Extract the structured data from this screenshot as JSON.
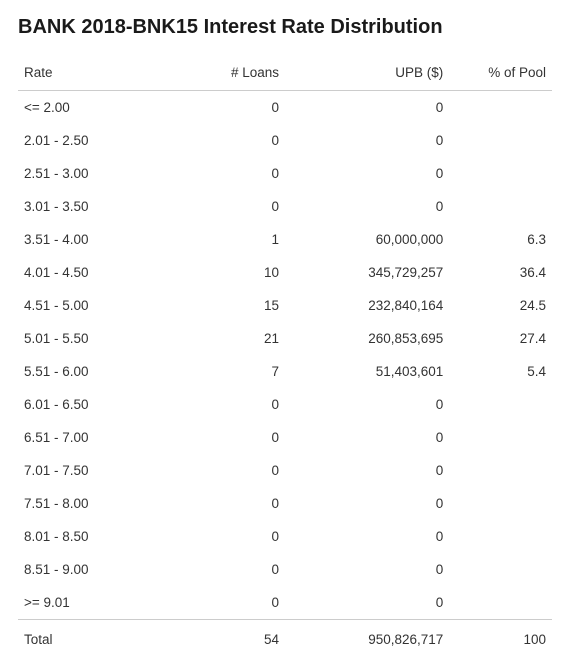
{
  "title": "BANK 2018-BNK15 Interest Rate Distribution",
  "table": {
    "columns": [
      "Rate",
      "# Loans",
      "UPB ($)",
      "% of Pool"
    ],
    "rows": [
      {
        "rate": "<= 2.00",
        "loans": "0",
        "upb": "0",
        "pct": ""
      },
      {
        "rate": "2.01 - 2.50",
        "loans": "0",
        "upb": "0",
        "pct": ""
      },
      {
        "rate": "2.51 - 3.00",
        "loans": "0",
        "upb": "0",
        "pct": ""
      },
      {
        "rate": "3.01 - 3.50",
        "loans": "0",
        "upb": "0",
        "pct": ""
      },
      {
        "rate": "3.51 - 4.00",
        "loans": "1",
        "upb": "60,000,000",
        "pct": "6.3"
      },
      {
        "rate": "4.01 - 4.50",
        "loans": "10",
        "upb": "345,729,257",
        "pct": "36.4"
      },
      {
        "rate": "4.51 - 5.00",
        "loans": "15",
        "upb": "232,840,164",
        "pct": "24.5"
      },
      {
        "rate": "5.01 - 5.50",
        "loans": "21",
        "upb": "260,853,695",
        "pct": "27.4"
      },
      {
        "rate": "5.51 - 6.00",
        "loans": "7",
        "upb": "51,403,601",
        "pct": "5.4"
      },
      {
        "rate": "6.01 - 6.50",
        "loans": "0",
        "upb": "0",
        "pct": ""
      },
      {
        "rate": "6.51 - 7.00",
        "loans": "0",
        "upb": "0",
        "pct": ""
      },
      {
        "rate": "7.01 - 7.50",
        "loans": "0",
        "upb": "0",
        "pct": ""
      },
      {
        "rate": "7.51 - 8.00",
        "loans": "0",
        "upb": "0",
        "pct": ""
      },
      {
        "rate": "8.01 - 8.50",
        "loans": "0",
        "upb": "0",
        "pct": ""
      },
      {
        "rate": "8.51 - 9.00",
        "loans": "0",
        "upb": "0",
        "pct": ""
      },
      {
        "rate": ">= 9.01",
        "loans": "0",
        "upb": "0",
        "pct": ""
      }
    ],
    "totals": {
      "label": "Total",
      "loans": "54",
      "upb": "950,826,717",
      "pct": "100"
    }
  },
  "style": {
    "text_color": "#333333",
    "title_color": "#1a1a1a",
    "border_color": "#cccccc",
    "background_color": "#ffffff",
    "title_fontsize": 20,
    "body_fontsize": 13.5,
    "row_padding_v": 9
  }
}
